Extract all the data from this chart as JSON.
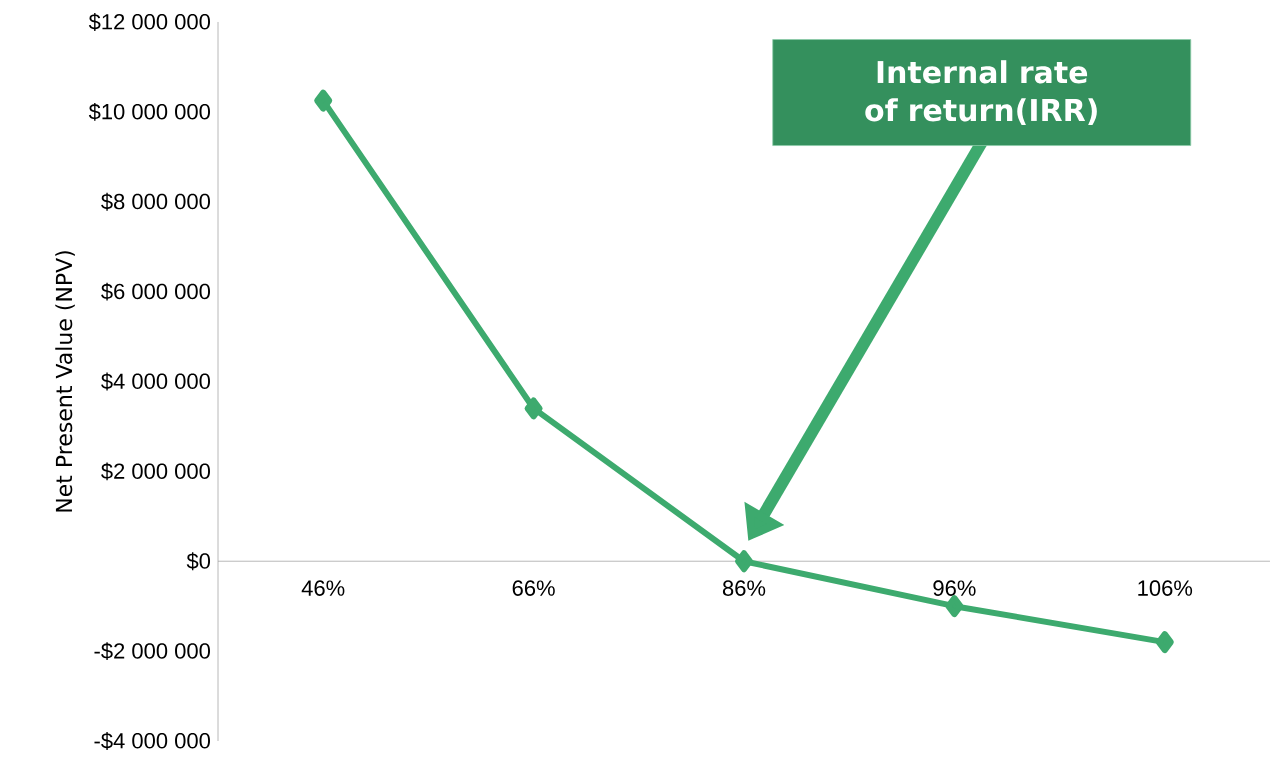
{
  "chart_data": {
    "type": "line",
    "ylabel": "Net Present Value (NPV)",
    "categories": [
      "46%",
      "66%",
      "86%",
      "96%",
      "106%"
    ],
    "values": [
      10250000,
      3400000,
      0,
      -1000000,
      -1800000
    ],
    "color": "#3daa6e",
    "marker": "diamond",
    "ylim": [
      -4000000,
      12000000
    ],
    "yticks": [
      {
        "value": -4000000,
        "label": "-$4 000 000"
      },
      {
        "value": -2000000,
        "label": "-$2 000 000"
      },
      {
        "value": 0,
        "label": "$0"
      },
      {
        "value": 2000000,
        "label": "$2 000 000"
      },
      {
        "value": 4000000,
        "label": "$4 000 000"
      },
      {
        "value": 6000000,
        "label": "$6 000 000"
      },
      {
        "value": 8000000,
        "label": "$8 000 000"
      },
      {
        "value": 10000000,
        "label": "$10 000 000"
      },
      {
        "value": 12000000,
        "label": "$12 000 000"
      }
    ],
    "annotations": [
      "Internal rate of return(IRR)"
    ]
  }
}
